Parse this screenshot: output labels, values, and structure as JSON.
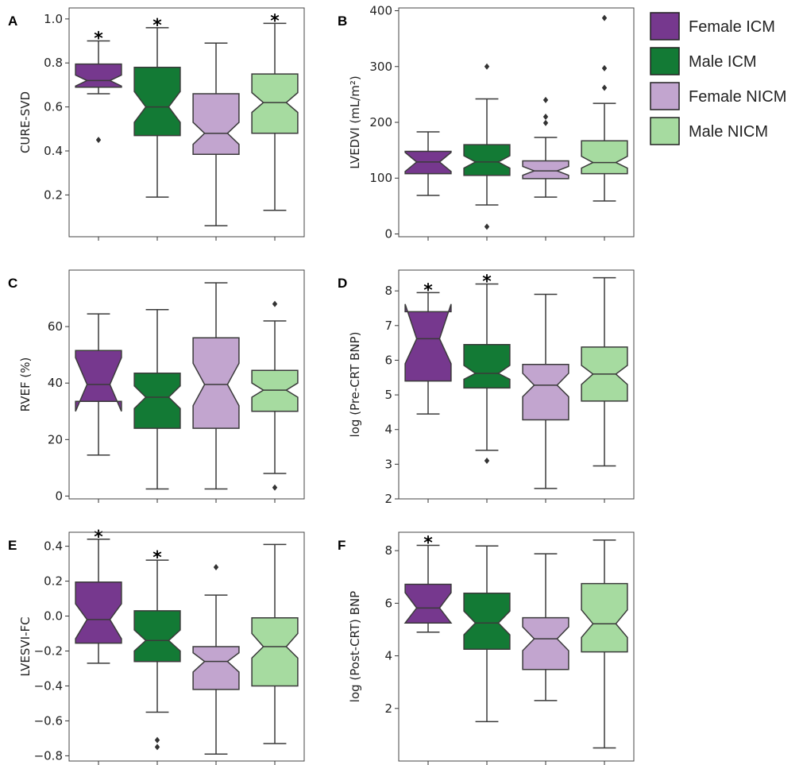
{
  "groups": [
    "Female ICM",
    "Male ICM",
    "Female NICM",
    "Male NICM"
  ],
  "colors": [
    "#76388e",
    "#137a35",
    "#c2a5cf",
    "#a6dba0"
  ],
  "legend": {
    "position": "top-right",
    "entries": [
      "Female ICM",
      "Male ICM",
      "Female NICM",
      "Male NICM"
    ]
  },
  "chart_data": [
    {
      "type": "box",
      "panel": "A",
      "title": "",
      "xlabel": "",
      "ylabel": "CURE-SVD",
      "ylim": [
        0.01,
        1.05
      ],
      "yticks": [
        0.2,
        0.4,
        0.6,
        0.8,
        1.0
      ],
      "tick_decimals": 1,
      "series": [
        {
          "name": "Female ICM",
          "whisker_low": 0.66,
          "q1": 0.69,
          "median": 0.72,
          "q3": 0.795,
          "whisker_high": 0.9,
          "notch_low": 0.695,
          "notch_high": 0.745,
          "outliers": [
            0.45
          ],
          "significant": true
        },
        {
          "name": "Male ICM",
          "whisker_low": 0.19,
          "q1": 0.47,
          "median": 0.6,
          "q3": 0.78,
          "whisker_high": 0.96,
          "notch_low": 0.53,
          "notch_high": 0.67,
          "outliers": [],
          "significant": true
        },
        {
          "name": "Female NICM",
          "whisker_low": 0.06,
          "q1": 0.385,
          "median": 0.48,
          "q3": 0.66,
          "whisker_high": 0.89,
          "notch_low": 0.43,
          "notch_high": 0.53,
          "outliers": [],
          "significant": false
        },
        {
          "name": "Male NICM",
          "whisker_low": 0.13,
          "q1": 0.48,
          "median": 0.62,
          "q3": 0.75,
          "whisker_high": 0.98,
          "notch_low": 0.575,
          "notch_high": 0.665,
          "outliers": [],
          "significant": true
        }
      ]
    },
    {
      "type": "box",
      "panel": "B",
      "title": "",
      "xlabel": "",
      "ylabel": "LVEDVI (mL/m²)",
      "ylim": [
        -5,
        405
      ],
      "yticks": [
        0,
        100,
        200,
        300,
        400
      ],
      "tick_decimals": 0,
      "series": [
        {
          "name": "Female ICM",
          "whisker_low": 69,
          "q1": 108,
          "median": 129,
          "q3": 148,
          "whisker_high": 183,
          "notch_low": 112,
          "notch_high": 146,
          "outliers": [],
          "significant": false
        },
        {
          "name": "Male ICM",
          "whisker_low": 52,
          "q1": 105,
          "median": 129,
          "q3": 160,
          "whisker_high": 242,
          "notch_low": 118,
          "notch_high": 140,
          "outliers": [
            300,
            13
          ],
          "significant": false
        },
        {
          "name": "Female NICM",
          "whisker_low": 66,
          "q1": 99,
          "median": 113,
          "q3": 131,
          "whisker_high": 173,
          "notch_low": 105,
          "notch_high": 121,
          "outliers": [
            240,
            210,
            199
          ],
          "significant": false
        },
        {
          "name": "Male NICM",
          "whisker_low": 59,
          "q1": 108,
          "median": 128,
          "q3": 167,
          "whisker_high": 234,
          "notch_low": 118,
          "notch_high": 139,
          "outliers": [
            387,
            297,
            262
          ],
          "significant": false
        }
      ]
    },
    {
      "type": "box",
      "panel": "C",
      "title": "",
      "xlabel": "",
      "ylabel": "RVEF (%)",
      "ylim": [
        -1,
        80
      ],
      "yticks": [
        0,
        20,
        40,
        60
      ],
      "tick_decimals": 0,
      "series": [
        {
          "name": "Female ICM",
          "whisker_low": 14.5,
          "q1": 33.5,
          "median": 39.5,
          "q3": 51.5,
          "whisker_high": 64.5,
          "notch_low": 30,
          "notch_high": 49,
          "outliers": [],
          "significant": false
        },
        {
          "name": "Male ICM",
          "whisker_low": 2.5,
          "q1": 24,
          "median": 35,
          "q3": 43.5,
          "whisker_high": 66,
          "notch_low": 31,
          "notch_high": 39,
          "outliers": [],
          "significant": false
        },
        {
          "name": "Female NICM",
          "whisker_low": 2.5,
          "q1": 24,
          "median": 39.5,
          "q3": 56,
          "whisker_high": 75.5,
          "notch_low": 32,
          "notch_high": 47,
          "outliers": [],
          "significant": false
        },
        {
          "name": "Male NICM",
          "whisker_low": 8,
          "q1": 30,
          "median": 37.5,
          "q3": 44.5,
          "whisker_high": 62,
          "notch_low": 35,
          "notch_high": 40,
          "outliers": [
            68,
            3
          ],
          "significant": false
        }
      ]
    },
    {
      "type": "box",
      "panel": "D",
      "title": "",
      "xlabel": "",
      "ylabel": "log (Pre-CRT BNP)",
      "ylim": [
        2,
        8.6
      ],
      "yticks": [
        2,
        3,
        4,
        5,
        6,
        7,
        8
      ],
      "tick_decimals": 0,
      "series": [
        {
          "name": "Female ICM",
          "whisker_low": 4.45,
          "q1": 5.4,
          "median": 6.62,
          "q3": 7.4,
          "whisker_high": 7.95,
          "notch_low": 5.9,
          "notch_high": 7.62,
          "outliers": [],
          "significant": true
        },
        {
          "name": "Male ICM",
          "whisker_low": 3.4,
          "q1": 5.2,
          "median": 5.62,
          "q3": 6.45,
          "whisker_high": 8.2,
          "notch_low": 5.45,
          "notch_high": 5.85,
          "outliers": [
            3.1
          ],
          "significant": true
        },
        {
          "name": "Female NICM",
          "whisker_low": 2.3,
          "q1": 4.28,
          "median": 5.28,
          "q3": 5.88,
          "whisker_high": 7.9,
          "notch_low": 4.95,
          "notch_high": 5.62,
          "outliers": [],
          "significant": false
        },
        {
          "name": "Male NICM",
          "whisker_low": 2.95,
          "q1": 4.82,
          "median": 5.6,
          "q3": 6.38,
          "whisker_high": 8.38,
          "notch_low": 5.3,
          "notch_high": 5.85,
          "outliers": [],
          "significant": false
        }
      ]
    },
    {
      "type": "box",
      "panel": "E",
      "title": "",
      "xlabel": "",
      "ylabel": "LVESVI-FC",
      "ylim": [
        -0.83,
        0.48
      ],
      "yticks": [
        -0.8,
        -0.6,
        -0.4,
        -0.2,
        0.0,
        0.2,
        0.4
      ],
      "tick_decimals": 1,
      "series": [
        {
          "name": "Female ICM",
          "whisker_low": -0.27,
          "q1": -0.155,
          "median": -0.02,
          "q3": 0.195,
          "whisker_high": 0.44,
          "notch_low": -0.13,
          "notch_high": 0.07,
          "outliers": [],
          "significant": true
        },
        {
          "name": "Male ICM",
          "whisker_low": -0.55,
          "q1": -0.26,
          "median": -0.14,
          "q3": 0.03,
          "whisker_high": 0.32,
          "notch_low": -0.2,
          "notch_high": -0.08,
          "outliers": [
            -0.71,
            -0.75
          ],
          "significant": true
        },
        {
          "name": "Female NICM",
          "whisker_low": -0.79,
          "q1": -0.42,
          "median": -0.26,
          "q3": -0.175,
          "whisker_high": 0.12,
          "notch_low": -0.32,
          "notch_high": -0.21,
          "outliers": [
            0.28
          ],
          "significant": false
        },
        {
          "name": "Male NICM",
          "whisker_low": -0.73,
          "q1": -0.4,
          "median": -0.175,
          "q3": -0.01,
          "whisker_high": 0.41,
          "notch_low": -0.24,
          "notch_high": -0.1,
          "outliers": [],
          "significant": false
        }
      ]
    },
    {
      "type": "box",
      "panel": "F",
      "title": "",
      "xlabel": "",
      "ylabel": "log (Post-CRT) BNP",
      "ylim": [
        0,
        8.7
      ],
      "yticks": [
        2,
        4,
        6,
        8
      ],
      "tick_decimals": 0,
      "series": [
        {
          "name": "Female ICM",
          "whisker_low": 4.9,
          "q1": 5.25,
          "median": 5.82,
          "q3": 6.72,
          "whisker_high": 8.2,
          "notch_low": 5.25,
          "notch_high": 6.4,
          "outliers": [],
          "significant": true
        },
        {
          "name": "Male ICM",
          "whisker_low": 1.5,
          "q1": 4.25,
          "median": 5.25,
          "q3": 6.38,
          "whisker_high": 8.18,
          "notch_low": 4.8,
          "notch_high": 5.7,
          "outliers": [],
          "significant": false
        },
        {
          "name": "Female NICM",
          "whisker_low": 2.3,
          "q1": 3.48,
          "median": 4.65,
          "q3": 5.45,
          "whisker_high": 7.88,
          "notch_low": 4.2,
          "notch_high": 5.1,
          "outliers": [],
          "significant": false
        },
        {
          "name": "Male NICM",
          "whisker_low": 0.5,
          "q1": 4.15,
          "median": 5.22,
          "q3": 6.75,
          "whisker_high": 8.4,
          "notch_low": 4.7,
          "notch_high": 5.75,
          "outliers": [],
          "significant": false
        }
      ]
    }
  ]
}
